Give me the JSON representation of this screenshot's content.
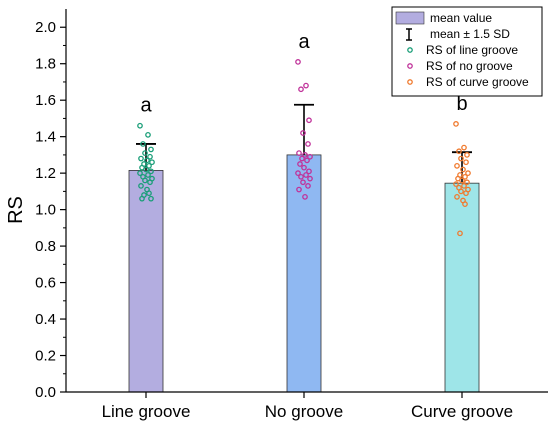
{
  "chart_data": {
    "type": "bar",
    "ylabel": "RS",
    "ylim": [
      0,
      2.1
    ],
    "yticks": [
      "0.0",
      "0.2",
      "0.4",
      "0.6",
      "0.8",
      "1.0",
      "1.2",
      "1.4",
      "1.6",
      "1.8",
      "2.0"
    ],
    "categories": [
      "Line groove",
      "No groove",
      "Curve groove"
    ],
    "means": [
      1.215,
      1.3,
      1.145
    ],
    "upper_error": [
      1.36,
      1.575,
      1.315
    ],
    "significance": [
      "a",
      "a",
      "b"
    ],
    "bar_colors": [
      "#b3ade0",
      "#8fb8f2",
      "#9ee5e8"
    ],
    "point_colors": [
      "#1a9e78",
      "#c0339a",
      "#f07a2e"
    ],
    "points": [
      [
        1.46,
        1.41,
        1.36,
        1.33,
        1.31,
        1.29,
        1.28,
        1.27,
        1.26,
        1.25,
        1.24,
        1.23,
        1.22,
        1.21,
        1.2,
        1.19,
        1.18,
        1.17,
        1.16,
        1.15,
        1.13,
        1.11,
        1.09,
        1.08,
        1.06,
        1.06
      ],
      [
        1.81,
        1.68,
        1.66,
        1.49,
        1.42,
        1.36,
        1.31,
        1.3,
        1.29,
        1.28,
        1.27,
        1.25,
        1.23,
        1.21,
        1.2,
        1.19,
        1.18,
        1.17,
        1.15,
        1.13,
        1.11,
        1.07
      ],
      [
        1.47,
        1.34,
        1.32,
        1.3,
        1.28,
        1.26,
        1.24,
        1.22,
        1.2,
        1.19,
        1.18,
        1.17,
        1.16,
        1.15,
        1.14,
        1.13,
        1.12,
        1.11,
        1.1,
        1.09,
        1.07,
        1.05,
        1.03,
        0.87
      ]
    ],
    "legend": {
      "position": "top-right",
      "items": [
        "mean value",
        "mean ± 1.5 SD",
        "RS of line groove",
        "RS of no groove",
        "RS of curve groove"
      ]
    }
  }
}
